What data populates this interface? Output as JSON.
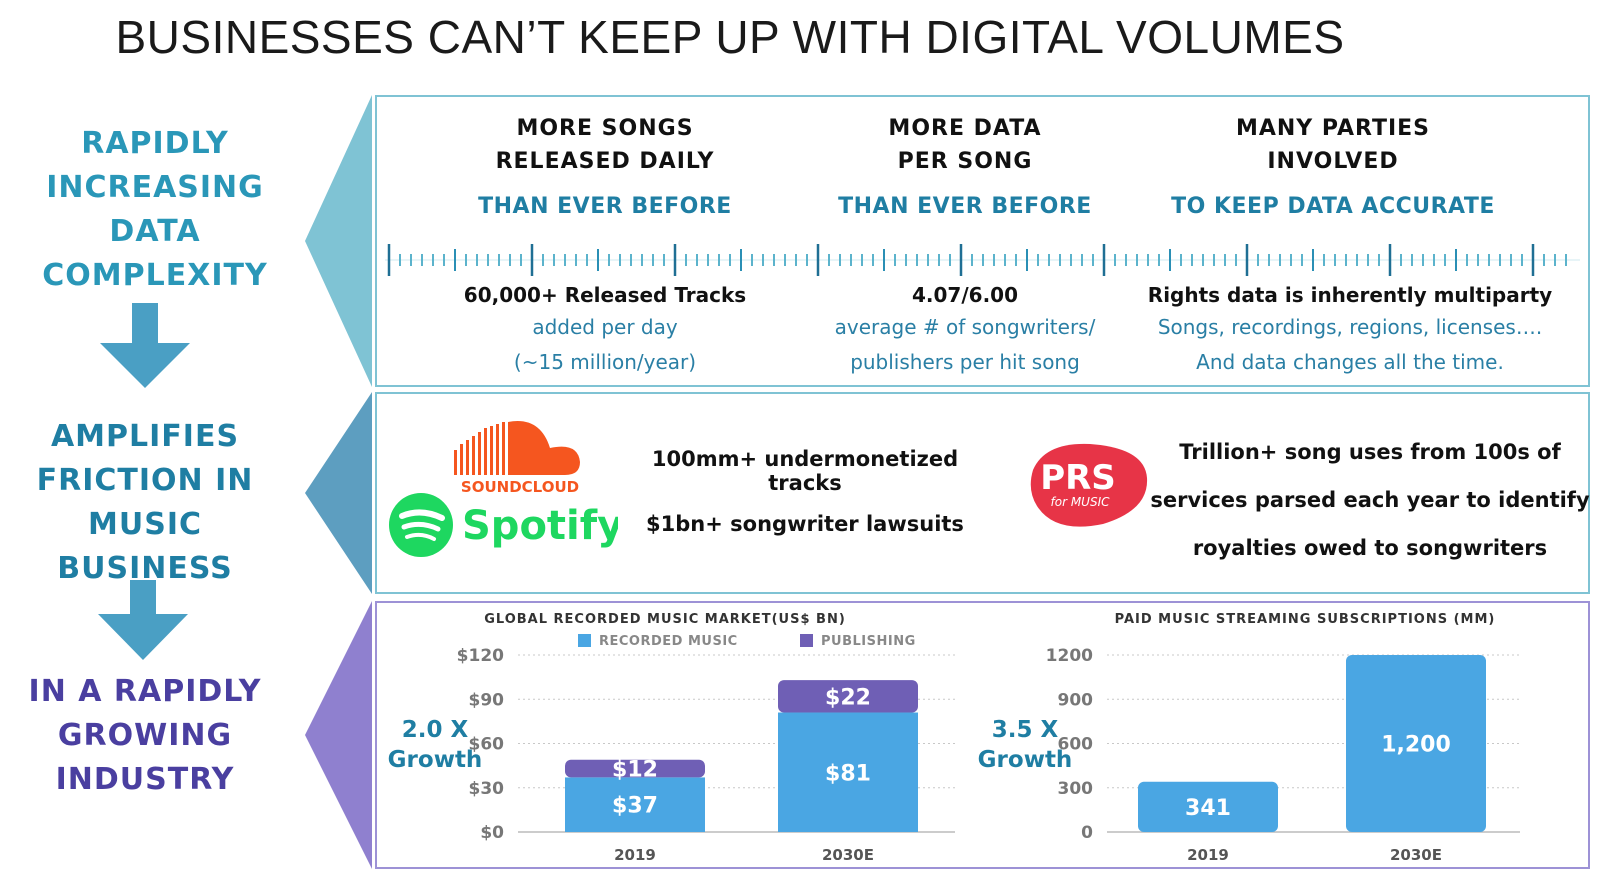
{
  "title": "BUSINESSES CAN’T KEEP UP WITH DIGITAL VOLUMES",
  "side": {
    "first": [
      "RAPIDLY",
      "INCREASING",
      "DATA",
      "COMPLEXITY"
    ],
    "second": [
      "AMPLIFIES",
      "FRICTION IN",
      "MUSIC BUSINESS"
    ],
    "third": [
      "IN A RAPIDLY",
      "GROWING",
      "INDUSTRY"
    ]
  },
  "columns": [
    {
      "h1": "MORE SONGS",
      "h2": "RELEASED DAILY",
      "sub": "THAN EVER BEFORE",
      "stat": "60,000+ Released Tracks",
      "d1": "added per day",
      "d2": "(~15 million/year)"
    },
    {
      "h1": "MORE DATA",
      "h2": "PER SONG",
      "sub": "THAN EVER BEFORE",
      "stat": "4.07/6.00",
      "d1": "average # of songwriters/",
      "d2": "publishers per hit song"
    },
    {
      "h1": "MANY PARTIES",
      "h2": "INVOLVED",
      "sub": "TO KEEP DATA ACCURATE",
      "stat": "Rights data is inherently multiparty",
      "d1": "Songs, recordings, regions, licenses….",
      "d2": "And data changes all the time."
    }
  ],
  "friction": {
    "soundcloud": "SOUNDCLOUD",
    "spotify": "Spotify",
    "line1": "100mm+ undermonetized tracks",
    "line2": "$1bn+ songwriter lawsuits",
    "prs_main": "PRS",
    "prs_sub": "for MUSIC",
    "prs1": "Trillion+ song uses from 100s of",
    "prs2": "services parsed each year to identify",
    "prs3": "royalties owed to songwriters"
  },
  "growth": {
    "left_a": "2.0 X",
    "left_b": "Growth",
    "right_a": "3.5 X",
    "right_b": "Growth"
  },
  "chart_data": [
    {
      "type": "bar",
      "stacked": true,
      "title": "GLOBAL RECORDED MUSIC MARKET(US$ BN)",
      "categories": [
        "2019",
        "2030E"
      ],
      "series": [
        {
          "name": "RECORDED MUSIC",
          "values": [
            37,
            81
          ],
          "labels": [
            "$37",
            "$81"
          ],
          "color": "#4aa6e3"
        },
        {
          "name": "PUBLISHING",
          "values": [
            12,
            22
          ],
          "labels": [
            "$12",
            "$22"
          ],
          "color": "#6f5fb5"
        }
      ],
      "yticks": [
        "$0",
        "$30",
        "$60",
        "$90",
        "$120"
      ],
      "ylim": [
        0,
        120
      ],
      "grid": true,
      "legend": "top"
    },
    {
      "type": "bar",
      "title": "PAID MUSIC STREAMING SUBSCRIPTIONS (MM)",
      "categories": [
        "2019",
        "2030E"
      ],
      "values": [
        341,
        1200
      ],
      "labels": [
        "341",
        "1,200"
      ],
      "color": "#4aa6e3",
      "yticks": [
        "0",
        "300",
        "600",
        "900",
        "1200"
      ],
      "ylim": [
        0,
        1200
      ],
      "grid": true
    }
  ]
}
